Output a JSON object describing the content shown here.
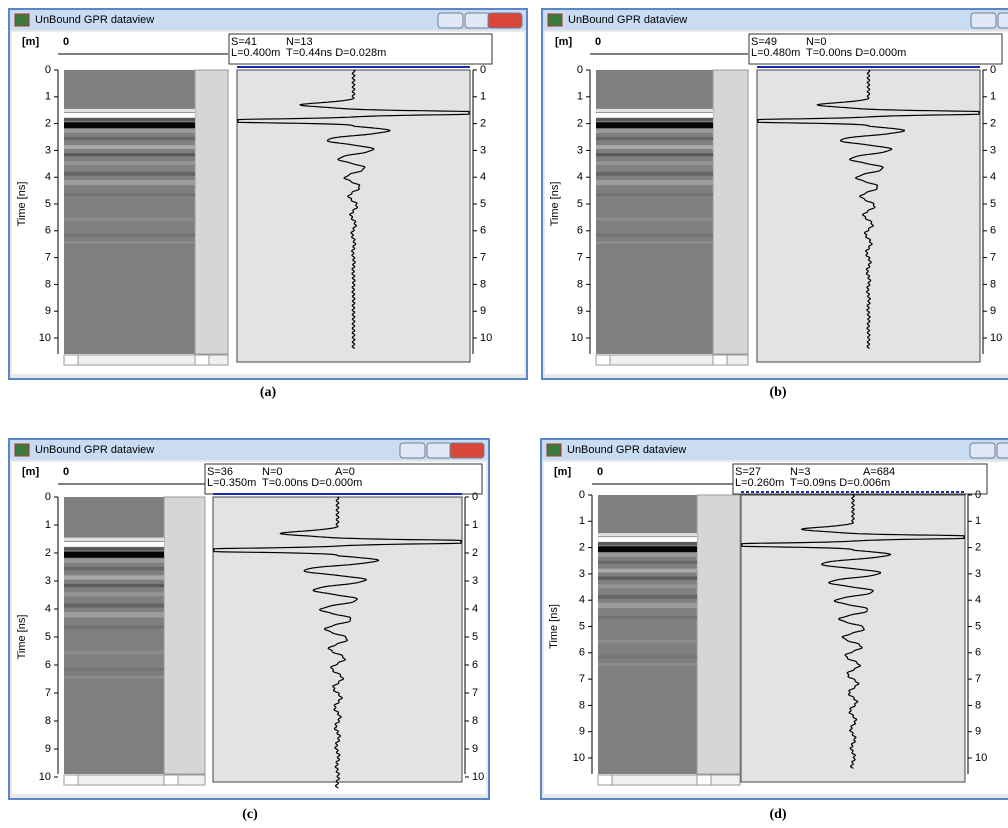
{
  "panels": [
    {
      "window_title": "UnBound GPR dataview",
      "unit": "[m]",
      "position": "0",
      "info": [
        [
          "S=41",
          "N=13"
        ],
        [
          "L=0.400m",
          "T=0.44ns D=0.028m"
        ]
      ],
      "axis_label": "Time [ns]",
      "ticks": [
        0,
        1,
        2,
        3,
        4,
        5,
        6,
        7,
        8,
        9,
        10
      ],
      "caption": "(a)"
    },
    {
      "window_title": "UnBound GPR dataview",
      "unit": "[m]",
      "position": "0",
      "info": [
        [
          "S=49",
          "N=0"
        ],
        [
          "L=0.480m",
          "T=0.00ns D=0.000m"
        ]
      ],
      "axis_label": "Time [ns]",
      "ticks": [
        0,
        1,
        2,
        3,
        4,
        5,
        6,
        7,
        8,
        9,
        10
      ],
      "caption": "(b)"
    },
    {
      "window_title": "UnBound GPR dataview",
      "unit": "[m]",
      "position": "0",
      "info": [
        [
          "S=36",
          "N=0",
          "A=0"
        ],
        [
          "L=0.350m",
          "T=0.00ns D=0.000m"
        ]
      ],
      "axis_label": "Time [ns]",
      "ticks": [
        0,
        1,
        2,
        3,
        4,
        5,
        6,
        7,
        8,
        9,
        10
      ],
      "caption": "(c)"
    },
    {
      "window_title": "UnBound GPR dataview",
      "unit": "[m]",
      "position": "0",
      "info": [
        [
          "S=27",
          "N=3",
          "A=684"
        ],
        [
          "L=0.260m",
          "T=0.09ns D=0.006m"
        ]
      ],
      "axis_label": "Time [ns]",
      "ticks": [
        0,
        1,
        2,
        3,
        4,
        5,
        6,
        7,
        8,
        9,
        10
      ],
      "caption": "(d)"
    }
  ]
}
